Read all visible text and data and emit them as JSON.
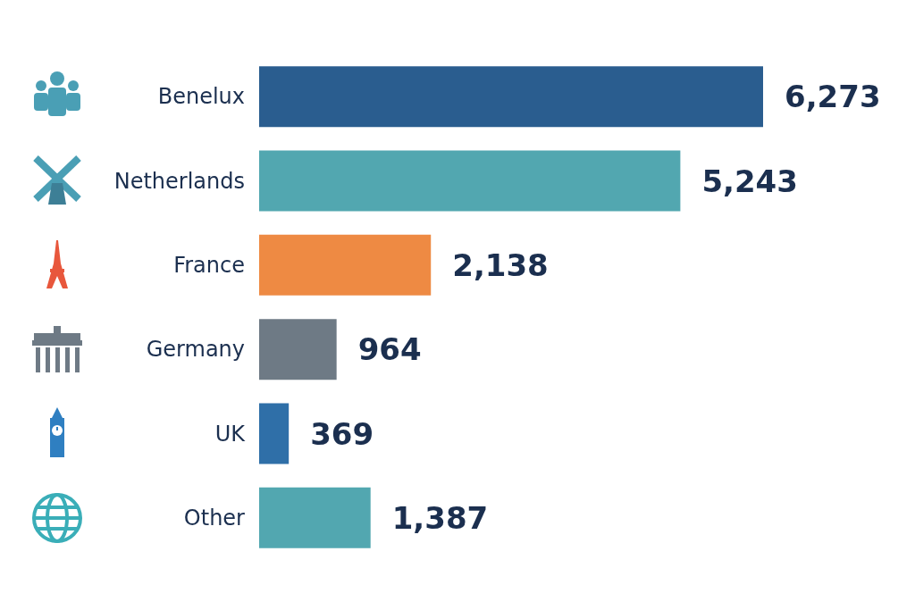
{
  "chart_data": {
    "type": "bar",
    "orientation": "horizontal",
    "categories": [
      "Benelux",
      "Netherlands",
      "France",
      "Germany",
      "UK",
      "Other"
    ],
    "values": [
      6273,
      5243,
      2138,
      964,
      369,
      1387
    ],
    "value_labels": [
      "6,273",
      "5,243",
      "2,138",
      "964",
      "369",
      "1,387"
    ],
    "colors": [
      "#2a5d8f",
      "#52a7b0",
      "#ee8a43",
      "#6e7a85",
      "#2f6fa8",
      "#52a7b0"
    ],
    "tick_labels": "y"
  }
}
